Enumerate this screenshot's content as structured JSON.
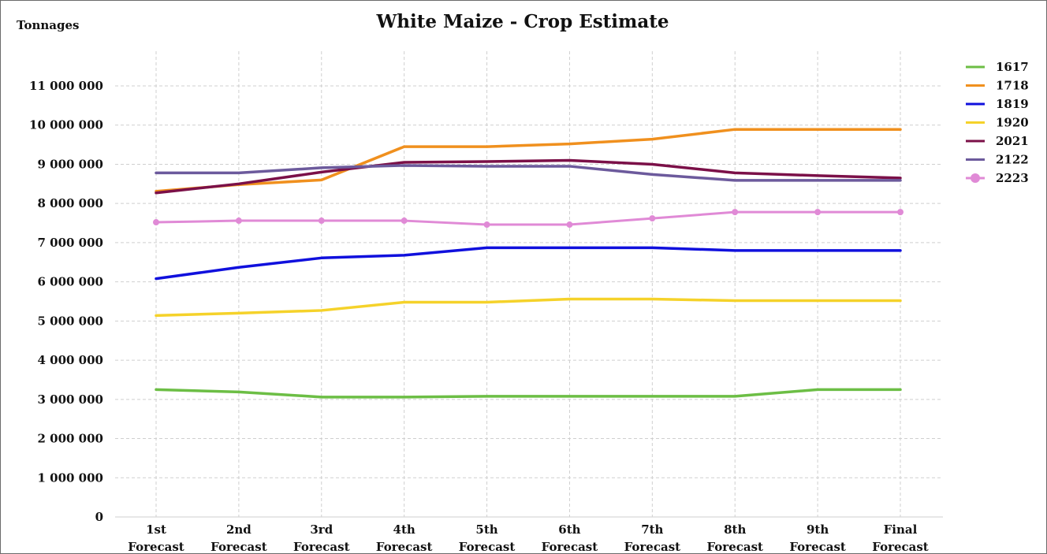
{
  "chart_data": {
    "type": "line",
    "title": "White Maize - Crop Estimate",
    "ylabel": "Tonnages",
    "xlabel": "",
    "ylim": [
      0,
      11000000
    ],
    "yticks": [
      0,
      1000000,
      2000000,
      3000000,
      4000000,
      5000000,
      6000000,
      7000000,
      8000000,
      9000000,
      10000000,
      11000000
    ],
    "ytick_labels": [
      "0",
      "1 000 000",
      "2 000 000",
      "3 000 000",
      "4 000 000",
      "5 000 000",
      "6 000 000",
      "7 000 000",
      "8 000 000",
      "9 000 000",
      "10 000 000",
      "11 000 000"
    ],
    "categories": [
      [
        "1st",
        "Forecast"
      ],
      [
        "2nd",
        "Forecast"
      ],
      [
        "3rd",
        "Forecast"
      ],
      [
        "4th",
        "Forecast"
      ],
      [
        "5th",
        "Forecast"
      ],
      [
        "6th",
        "Forecast"
      ],
      [
        "7th",
        "Forecast"
      ],
      [
        "8th",
        "Forecast"
      ],
      [
        "9th",
        "Forecast"
      ],
      [
        "Final",
        "Forecast"
      ]
    ],
    "grid": true,
    "legend_position": "right",
    "series": [
      {
        "name": "1617",
        "color": "#6cbe45",
        "markers": false,
        "values": [
          3250000,
          3190000,
          3060000,
          3060000,
          3080000,
          3080000,
          3080000,
          3080000,
          3250000,
          3250000
        ]
      },
      {
        "name": "1718",
        "color": "#f0901e",
        "markers": false,
        "values": [
          8310000,
          8480000,
          8600000,
          9450000,
          9450000,
          9520000,
          9640000,
          9890000,
          9890000,
          9890000
        ]
      },
      {
        "name": "1819",
        "color": "#1010dd",
        "markers": false,
        "values": [
          6080000,
          6370000,
          6610000,
          6680000,
          6870000,
          6870000,
          6870000,
          6800000,
          6800000,
          6800000
        ]
      },
      {
        "name": "1920",
        "color": "#f5d22a",
        "markers": false,
        "values": [
          5140000,
          5200000,
          5270000,
          5480000,
          5480000,
          5560000,
          5560000,
          5520000,
          5520000,
          5520000
        ]
      },
      {
        "name": "2021",
        "color": "#7b1048",
        "markers": false,
        "values": [
          8270000,
          8500000,
          8800000,
          9050000,
          9070000,
          9100000,
          9000000,
          8780000,
          8710000,
          8650000
        ]
      },
      {
        "name": "2122",
        "color": "#6c5a9c",
        "markers": false,
        "values": [
          8780000,
          8780000,
          8910000,
          8970000,
          8950000,
          8950000,
          8740000,
          8590000,
          8590000,
          8590000
        ]
      },
      {
        "name": "2223",
        "color": "#e08ad6",
        "markers": true,
        "values": [
          7520000,
          7560000,
          7560000,
          7560000,
          7460000,
          7460000,
          7620000,
          7780000,
          7780000,
          7780000
        ]
      }
    ]
  }
}
